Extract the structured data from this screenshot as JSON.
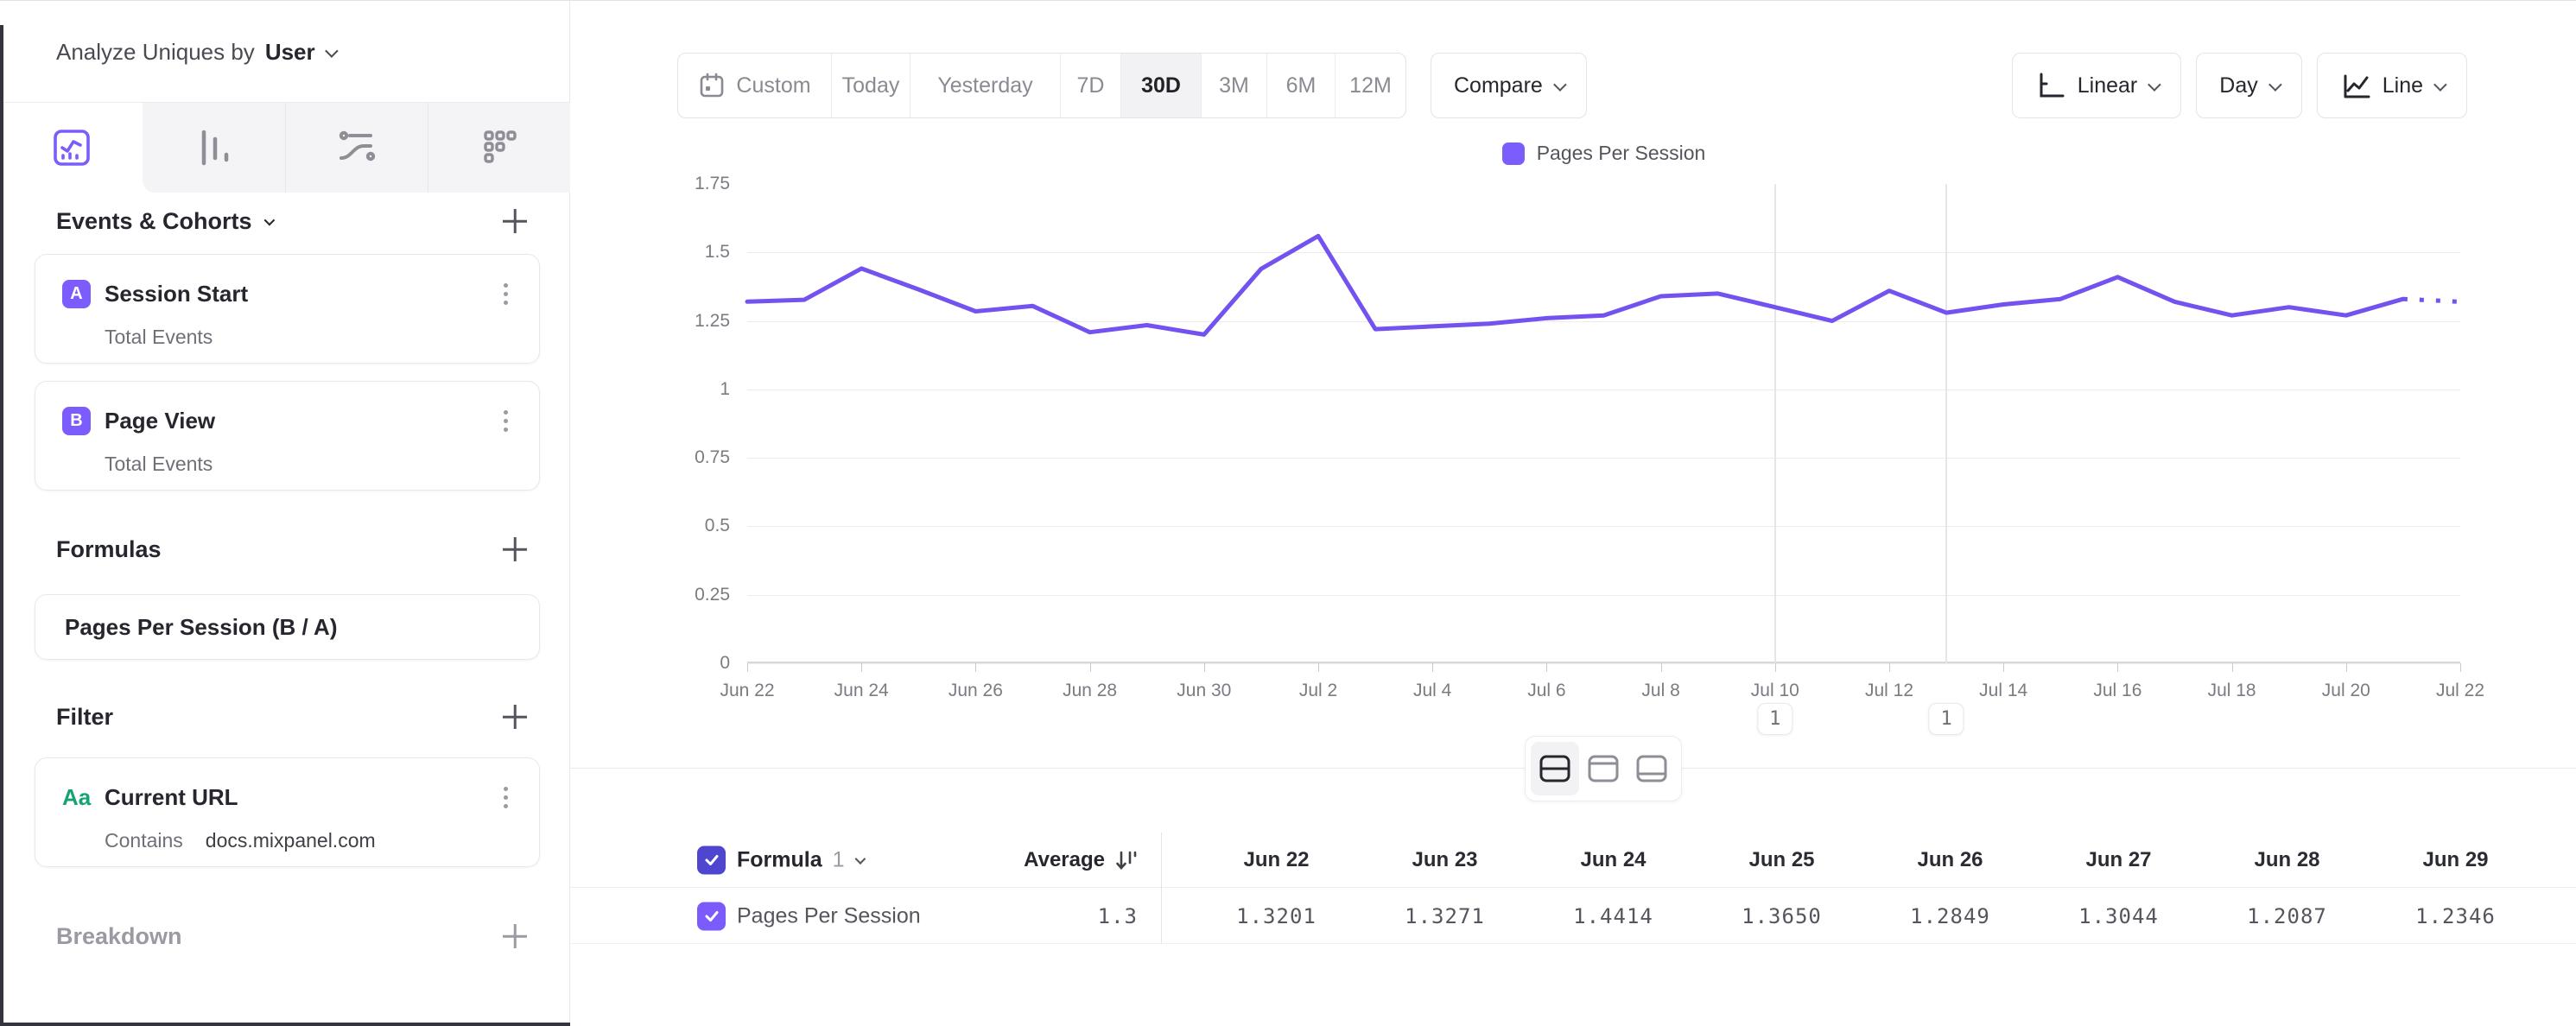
{
  "sidebar": {
    "analyze_label": "Analyze Uniques by",
    "analyze_value": "User",
    "tabs": {
      "icons": [
        "insights-icon",
        "funnels-icon",
        "flows-icon",
        "retention-icon"
      ],
      "selected": "insights"
    },
    "events_section": {
      "title": "Events & Cohorts",
      "items": [
        {
          "badge": "A",
          "title": "Session Start",
          "subtitle": "Total Events"
        },
        {
          "badge": "B",
          "title": "Page View",
          "subtitle": "Total Events"
        }
      ]
    },
    "formulas_section": {
      "title": "Formulas",
      "items": [
        {
          "title": "Pages Per Session (B / A)"
        }
      ]
    },
    "filter_section": {
      "title": "Filter",
      "items": [
        {
          "badge": "Aa",
          "title": "Current URL",
          "operator": "Contains",
          "value": "docs.mixpanel.com"
        }
      ]
    },
    "breakdown_section": {
      "title": "Breakdown"
    }
  },
  "toolbar": {
    "date_ranges": [
      "Custom",
      "Today",
      "Yesterday",
      "7D",
      "30D",
      "3M",
      "6M",
      "12M"
    ],
    "selected_range": "30D",
    "compare_label": "Compare",
    "scale_label": "Linear",
    "granularity_label": "Day",
    "chart_type_label": "Line"
  },
  "legend": {
    "label": "Pages Per Session"
  },
  "chart_data": {
    "type": "line",
    "title": "",
    "xlabel": "",
    "ylabel": "",
    "ylim": [
      0,
      1.75
    ],
    "y_ticks": [
      "1.75",
      "1.5",
      "1.25",
      "1",
      "0.75",
      "0.5",
      "0.25",
      "0"
    ],
    "grid": true,
    "legend_position": "top-center",
    "x": [
      "Jun 22",
      "Jun 23",
      "Jun 24",
      "Jun 25",
      "Jun 26",
      "Jun 27",
      "Jun 28",
      "Jun 29",
      "Jun 30",
      "Jul 1",
      "Jul 2",
      "Jul 3",
      "Jul 4",
      "Jul 5",
      "Jul 6",
      "Jul 7",
      "Jul 8",
      "Jul 9",
      "Jul 10",
      "Jul 11",
      "Jul 12",
      "Jul 13",
      "Jul 14",
      "Jul 15",
      "Jul 16",
      "Jul 17",
      "Jul 18",
      "Jul 19",
      "Jul 20",
      "Jul 21",
      "Jul 22"
    ],
    "x_label_every": 2,
    "series": [
      {
        "name": "Pages Per Session",
        "color": "#7352F0",
        "values": [
          1.3201,
          1.3271,
          1.4414,
          1.365,
          1.2849,
          1.3044,
          1.2087,
          1.2346,
          1.2,
          1.44,
          1.56,
          1.22,
          1.23,
          1.24,
          1.26,
          1.27,
          1.34,
          1.35,
          1.3,
          1.25,
          1.36,
          1.28,
          1.31,
          1.33,
          1.41,
          1.32,
          1.27,
          1.3,
          1.27,
          1.33,
          1.32
        ],
        "dashed_tail_segments": 1
      }
    ],
    "annotations": [
      {
        "date": "Jul 10",
        "label": "1"
      },
      {
        "date": "Jul 13",
        "label": "1"
      }
    ]
  },
  "view_toggle": {
    "options": [
      "split-view",
      "chart-only-view",
      "table-only-view"
    ],
    "selected": "split-view"
  },
  "table": {
    "header": {
      "name_label": "Formula",
      "name_number": "1",
      "average_label": "Average"
    },
    "columns": [
      "Jun 22",
      "Jun 23",
      "Jun 24",
      "Jun 25",
      "Jun 26",
      "Jun 27",
      "Jun 28",
      "Jun 29"
    ],
    "rows": [
      {
        "label": "Pages Per Session",
        "checked": true,
        "average": "1.3",
        "values": [
          "1.3201",
          "1.3271",
          "1.4414",
          "1.3650",
          "1.2849",
          "1.3044",
          "1.2087",
          "1.2346"
        ]
      }
    ]
  },
  "colors": {
    "accent": "#7856FF",
    "line": "#7352F0",
    "badge": "#7C5CFC",
    "checkbox_header": "#4F46CF",
    "checkbox_row": "#7B5BFB",
    "filter_type_green": "#16A374"
  }
}
